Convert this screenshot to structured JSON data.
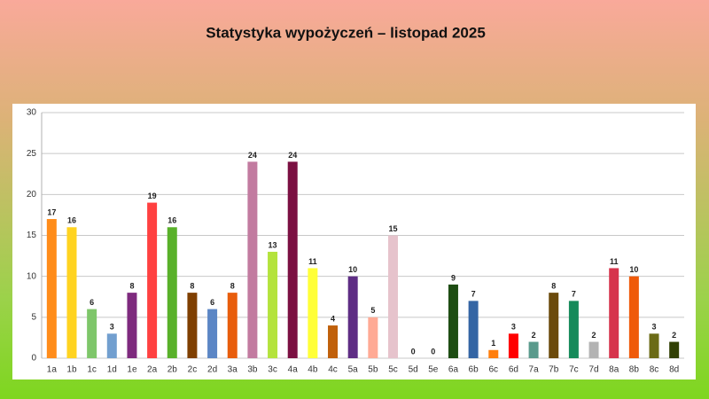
{
  "chart_data": {
    "type": "bar",
    "title": "Statystyka wypożyczeń – listopad 2025",
    "categories": [
      "1a",
      "1b",
      "1c",
      "1d",
      "1e",
      "2a",
      "2b",
      "2c",
      "2d",
      "3a",
      "3b",
      "3c",
      "4a",
      "4b",
      "4c",
      "5a",
      "5b",
      "5c",
      "5d",
      "5e",
      "6a",
      "6b",
      "6c",
      "6d",
      "7a",
      "7b",
      "7c",
      "7d",
      "8a",
      "8b",
      "8c",
      "8d"
    ],
    "values": [
      17,
      16,
      6,
      3,
      8,
      19,
      16,
      8,
      6,
      8,
      24,
      13,
      24,
      11,
      4,
      10,
      5,
      15,
      0,
      0,
      9,
      7,
      1,
      3,
      2,
      8,
      7,
      2,
      11,
      10,
      3,
      2
    ],
    "colors": [
      "#ff8c1a",
      "#ffd320",
      "#7ec66a",
      "#729fcf",
      "#7e2a7e",
      "#ff4040",
      "#59b12a",
      "#7f3f00",
      "#5b86c5",
      "#e85d0c",
      "#c27ba0",
      "#b4e33d",
      "#7b1042",
      "#ffff38",
      "#c0600b",
      "#5e2d84",
      "#ffaa95",
      "#e6c3cc",
      "#999999",
      "#cccccc",
      "#1e4d13",
      "#3465a4",
      "#ff7f0e",
      "#ff0000",
      "#5a9a8c",
      "#6b4a0c",
      "#168a5a",
      "#b3b3b3",
      "#d6344c",
      "#ef5a0a",
      "#6b6b16",
      "#314004"
    ],
    "ylim": [
      0,
      30
    ],
    "yticks": [
      0,
      5,
      10,
      15,
      20,
      25,
      30
    ],
    "grid": true
  }
}
